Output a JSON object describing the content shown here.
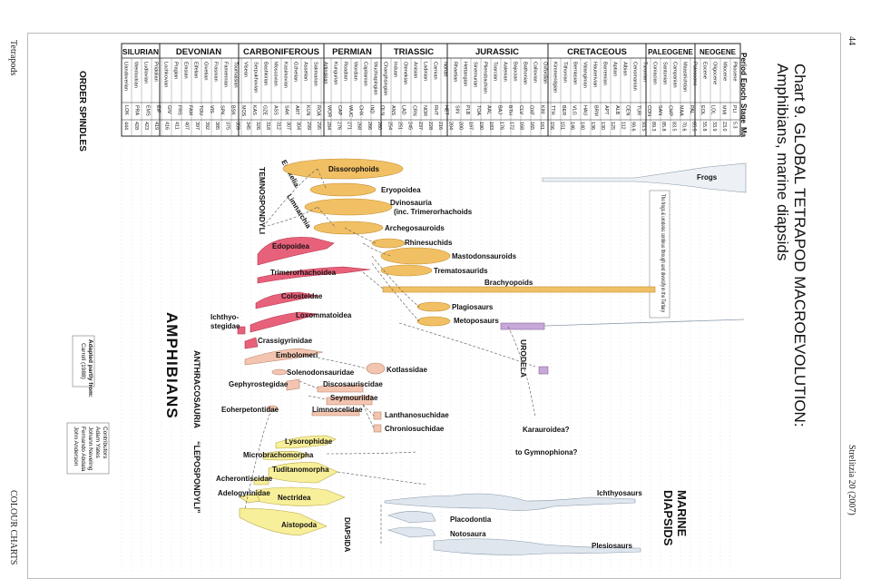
{
  "margins": {
    "left": "Tetrapods",
    "left_bottom": "COLOUR CHARTS",
    "right_top": "44",
    "right_bottom": "Strelitzia 20 (2007)"
  },
  "title_line1": "Chart 9. GLOBAL TETRAPOD MACROEVOLUTION:",
  "title_line2": "Amphibians, marine diapsids",
  "headers": {
    "period": "Period",
    "epoch": "Epoch",
    "stage": "Stage",
    "ma": "Ma"
  },
  "periods": [
    "SILURIAN",
    "DEVONIAN",
    "CARBONIFEROUS",
    "PERMIAN",
    "TRIASSIC",
    "JURASSIC",
    "CRETACEOUS",
    "PALEOGENE",
    "NEOGENE"
  ],
  "epochs": [
    "Pliocene",
    "Miocene",
    "Oligocene",
    "Eocene",
    "Paleocene",
    "Maastrichtian",
    "Campanian",
    "Santonian",
    "Coniacian",
    "Turonian",
    "Cenomanian",
    "Albian",
    "Aptian",
    "Barremian",
    "Hauterivian",
    "Valanginian",
    "Berriasian",
    "Tithonian",
    "Kimmeridgian",
    "Oxfordian",
    "Callovian",
    "Bathonian",
    "Bajocian",
    "Aalenian",
    "Toarcian",
    "Pliensbachian",
    "Sinemurian",
    "Hettangian",
    "Rhaetian",
    "Norian",
    "Carnian",
    "Ladinian",
    "Anisian",
    "Olenekian",
    "Induan",
    "Changhsingian",
    "Wuchiapingian",
    "Capitanian",
    "Wordian",
    "Roadian",
    "Kungurian",
    "Artinskian",
    "Sakmarian",
    "Asselian",
    "Gzhelian",
    "Kasimovian",
    "Moscovian",
    "Bashkirian",
    "Serpukhovian",
    "Visean",
    "Tournaisian",
    "Famennian",
    "Frasnian",
    "Givetian",
    "Eifelian",
    "Emsian",
    "Pragian",
    "Lochkovian",
    "Pridolian",
    "Ludlovian",
    "Wenlockian",
    "Llandoverian"
  ],
  "stage_codes": [
    "PLI",
    "MMI",
    "LOL",
    "EOL",
    "PAL",
    "MAA",
    "CMP",
    "SAN",
    "CON",
    "TUR",
    "CEN",
    "ALB",
    "APT",
    "BRM",
    "HAU",
    "VLG",
    "BER",
    "TTH",
    "KIM",
    "OXF",
    "CLV",
    "BTH",
    "BAJ",
    "AAL",
    "TOA",
    "PLB",
    "SIN",
    "HET",
    "RHT",
    "NOR",
    "CRN",
    "LAD",
    "ANS",
    "OLN",
    "IND",
    "CHX",
    "WUC",
    "CAP",
    "WOR",
    "ROA",
    "KUN",
    "ART",
    "SAK",
    "ASS",
    "GZE",
    "KAS",
    "MOS",
    "BSK",
    "SPK",
    "VIS",
    "TOU",
    "FAM",
    "FRS",
    "GIV",
    "EIF",
    "EMS",
    "PRA",
    "LOK"
  ],
  "ma_values": [
    "5.3",
    "23.0",
    "33.9",
    "55.8",
    "65.5",
    "70.6",
    "83.5",
    "85.8",
    "89.3",
    "93.5",
    "99.6",
    "112",
    "125",
    "130",
    "136",
    "140",
    "146",
    "151",
    "156",
    "161",
    "165",
    "168",
    "172",
    "176",
    "183",
    "190",
    "197",
    "200",
    "204",
    "216",
    "228",
    "237",
    "245",
    "251",
    "254",
    "260",
    "266",
    "268",
    "271",
    "276",
    "284",
    "295",
    "299",
    "304",
    "307",
    "312",
    "318",
    "326",
    "345",
    "359",
    "375",
    "385",
    "392",
    "397",
    "407",
    "411",
    "416",
    "419",
    "423",
    "428",
    "444"
  ],
  "labels": {
    "amphibians": "AMPHIBIANS",
    "marine": "MARINE",
    "diapsids": "DIAPSIDS",
    "temnospondyli": "TEMNOSPONDYLI",
    "anthracosauria": "ANTHRACOSAURIA",
    "lepospondyli": "“LEPOSPONDYLI”",
    "urodela": "URODELA",
    "diapsida": "DIAPSIDA",
    "order_spindles": "ORDER SPINDLES",
    "euskelia": "Euskelia",
    "limnarchia": "Limnarchia",
    "frogs_note": "The frogs & urodeles continue through and diversify in the Tertiary"
  },
  "taxa": [
    "Dissorophoids",
    "Eryopoidea",
    "Dvinosauria",
    "(inc. Trimerorhachoids",
    "Archegosauroids",
    "Rhinesuchids",
    "Mastodonsauroids",
    "Trematosaurids",
    "Brachyopoids",
    "Plagiosaurs",
    "Metoposaurs",
    "Edopoidea",
    "Trimerorhachoidea",
    "Colosteidae",
    "Loxommatoidea",
    "Ichthyo-",
    "stegidae",
    "Crassigyrinidae",
    "Embolomeri",
    "Solenodonsauridae",
    "Gephyrostegidae",
    "Discosauriscidae",
    "Seymouriidae",
    "Kotlassidae",
    "Eoherpetontidae",
    "Limnoscelidae",
    "Lanthanosuchidae",
    "Chroniosuchidae",
    "Lysorophidae",
    "Microbrachomorpha",
    "Tuditanomorpha",
    "Acherontiscidae",
    "Adelogyrinidae",
    "Nectridea",
    "Aistopoda",
    "Frogs",
    "Karauroidea?",
    "to Gymnophiona?",
    "Ichthyosaurs",
    "Placodontia",
    "Notosaura",
    "Plesiosaurs"
  ],
  "attribution": {
    "line1": "Adapted partly from:",
    "line2": "Carroll (1988)"
  },
  "contributors": {
    "heading": "Contributors",
    "names": [
      "Adam Yates",
      "Johann Neveling",
      "Fernando Abdala",
      "John Anderson"
    ]
  },
  "colors": {
    "dissorophoid": "#f2c064",
    "temno": "#e8617a",
    "anthraco": "#f3c5b0",
    "lepo": "#f8ef9a",
    "frog": "#e8edf2",
    "urodela": "#c7a8d8",
    "marine": "#dfe6ee"
  }
}
